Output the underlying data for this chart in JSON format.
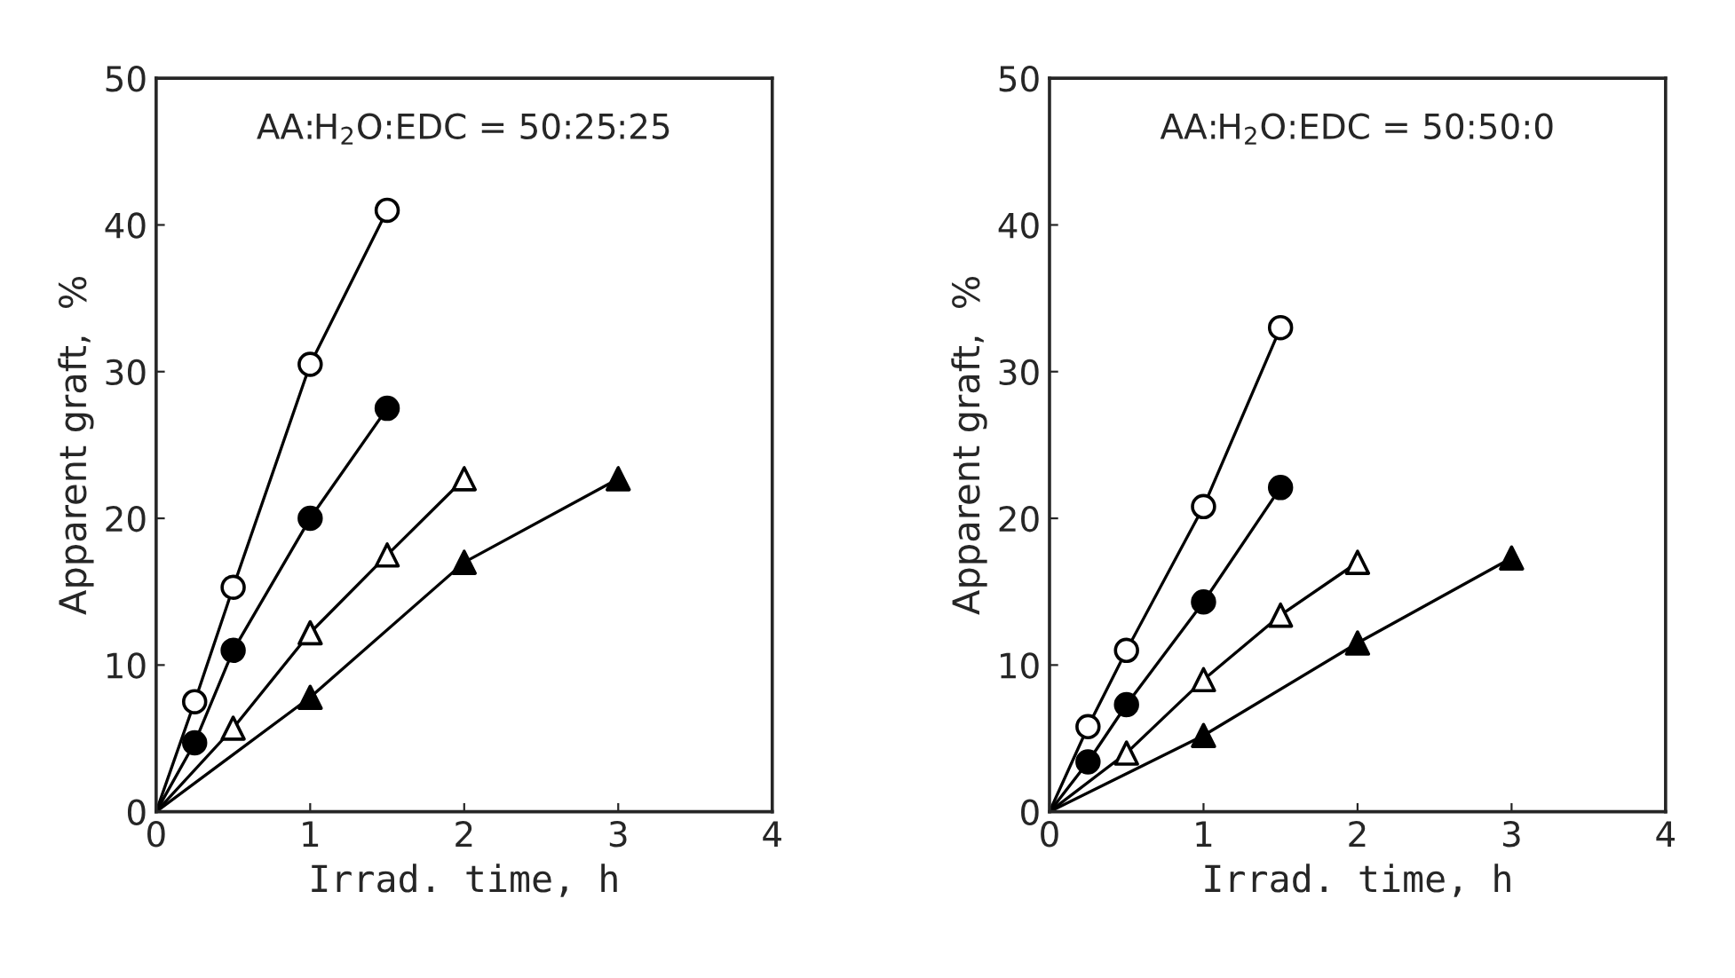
{
  "chart_data": [
    {
      "type": "line",
      "xlabel": "Irrad. time, h",
      "ylabel": "Apparent graft,  %",
      "annotations": [
        "AA:H$_{2}$O:EDC = 50:25:25"
      ],
      "xlim": [
        0,
        4
      ],
      "ylim": [
        0,
        50
      ],
      "xticks": [
        0,
        1,
        2,
        3,
        4
      ],
      "yticks": [
        0,
        10,
        20,
        30,
        40,
        50
      ],
      "grid": false,
      "legend": false,
      "series": [
        {
          "color": "#000000",
          "marker": "circle",
          "colors": [
            null,
            "#ffffff",
            "#ffffff",
            "#ffffff",
            "#ffffff"
          ],
          "x": [
            0,
            0.25,
            0.5,
            1,
            1.5
          ],
          "values": [
            0,
            7.5,
            15.3,
            30.5,
            41
          ]
        },
        {
          "color": "#000000",
          "marker": "circle",
          "colors": [
            null,
            "#000000",
            "#000000",
            "#000000",
            "#000000"
          ],
          "x": [
            0,
            0.25,
            0.5,
            1,
            1.5
          ],
          "values": [
            0,
            4.7,
            11,
            20,
            27.5
          ]
        },
        {
          "color": "#000000",
          "marker": "triangle",
          "colors": [
            null,
            "#ffffff",
            "#ffffff",
            "#ffffff",
            "#ffffff"
          ],
          "x": [
            0,
            0.5,
            1,
            1.5,
            2
          ],
          "values": [
            0,
            5.7,
            12.2,
            17.5,
            22.7
          ]
        },
        {
          "color": "#000000",
          "marker": "triangle",
          "colors": [
            null,
            "#000000",
            "#000000",
            "#000000"
          ],
          "x": [
            0,
            1,
            2,
            3
          ],
          "values": [
            0,
            7.8,
            17,
            22.7
          ]
        }
      ]
    },
    {
      "type": "line",
      "xlabel": "Irrad. time, h",
      "ylabel": "Apparent graft,  %",
      "annotations": [
        "AA:H$_{2}$O:EDC = 50:50:0"
      ],
      "xlim": [
        0,
        4
      ],
      "ylim": [
        0,
        50
      ],
      "xticks": [
        0,
        1,
        2,
        3,
        4
      ],
      "yticks": [
        0,
        10,
        20,
        30,
        40,
        50
      ],
      "grid": false,
      "legend": false,
      "series": [
        {
          "color": "#000000",
          "marker": "circle",
          "colors": [
            null,
            "#ffffff",
            "#ffffff",
            "#ffffff",
            "#ffffff"
          ],
          "x": [
            0,
            0.25,
            0.5,
            1,
            1.5
          ],
          "values": [
            0,
            5.8,
            11,
            20.8,
            33
          ]
        },
        {
          "color": "#000000",
          "marker": "circle",
          "colors": [
            null,
            "#000000",
            "#000000",
            "#000000",
            "#000000"
          ],
          "x": [
            0,
            0.25,
            0.5,
            1,
            1.5
          ],
          "values": [
            0,
            3.4,
            7.3,
            14.3,
            22.1
          ]
        },
        {
          "color": "#000000",
          "marker": "triangle",
          "colors": [
            null,
            "#ffffff",
            "#ffffff",
            "#ffffff",
            "#ffffff"
          ],
          "x": [
            0,
            0.5,
            1,
            1.5,
            2
          ],
          "values": [
            0,
            4,
            9,
            13.4,
            17
          ]
        },
        {
          "color": "#000000",
          "marker": "triangle",
          "colors": [
            null,
            "#000000",
            "#000000",
            "#000000"
          ],
          "x": [
            0,
            1,
            2,
            3
          ],
          "values": [
            0,
            5.2,
            11.5,
            17.3
          ]
        }
      ]
    }
  ]
}
